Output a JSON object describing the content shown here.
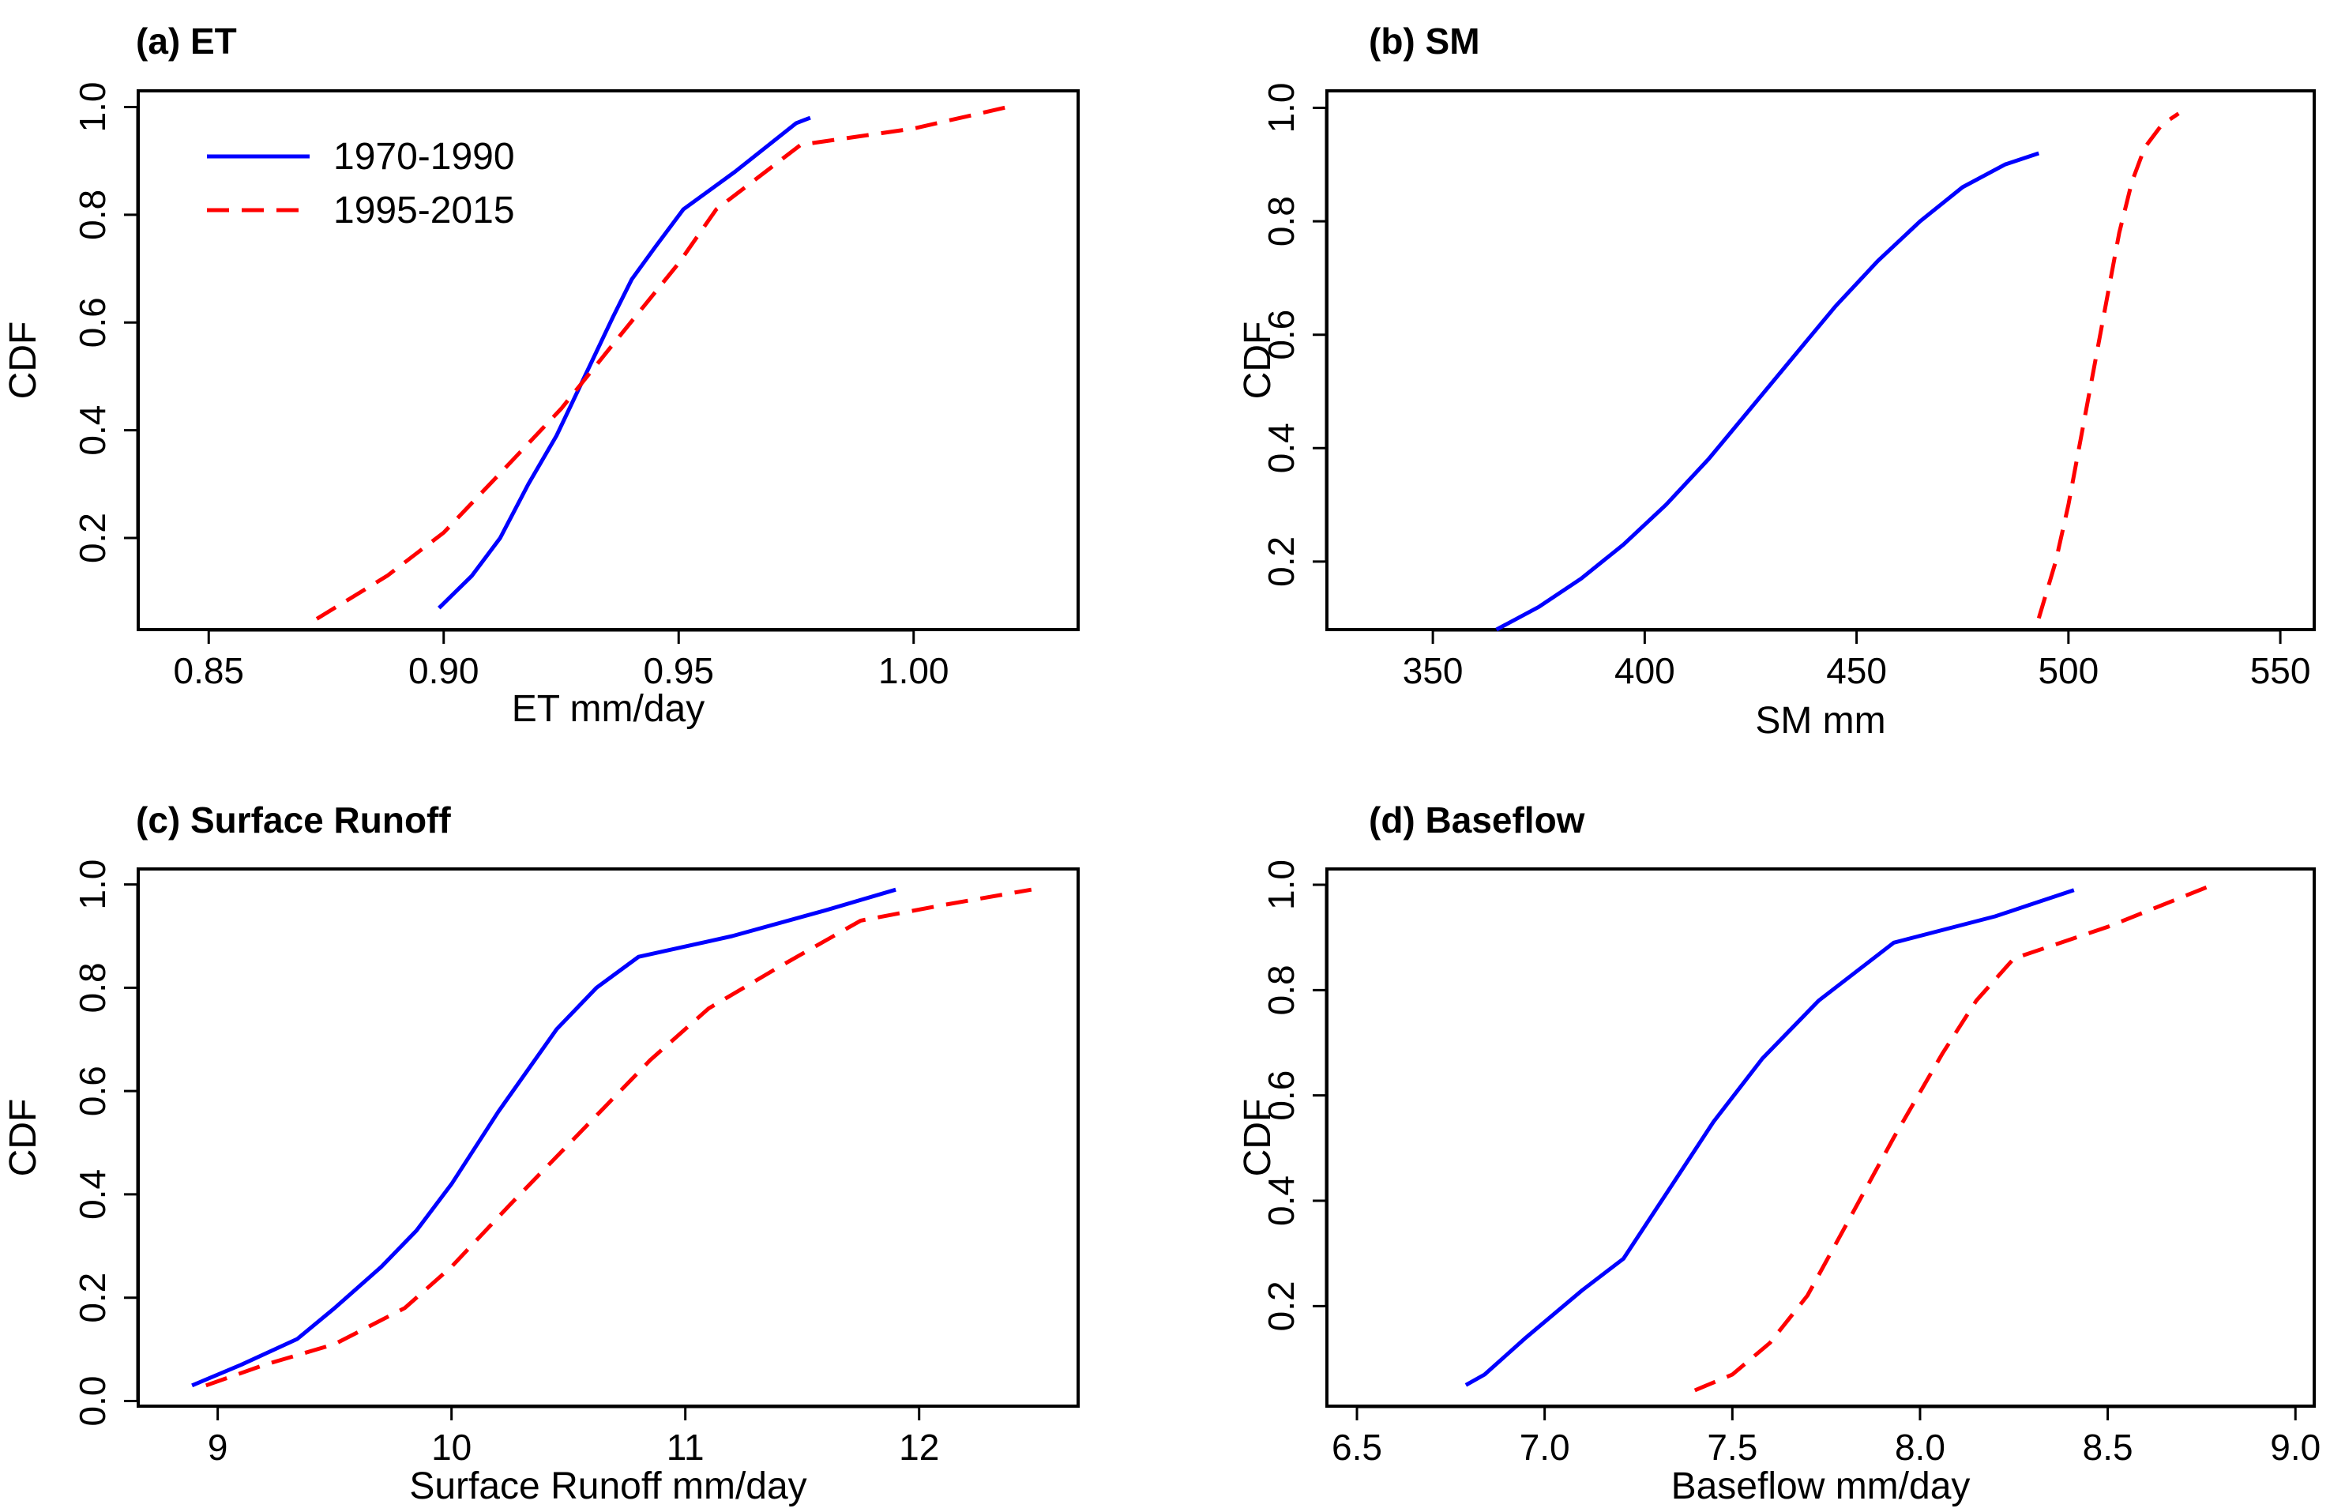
{
  "legend": [
    {
      "name": "1970-1990",
      "color": "#0000ff",
      "dash": "solid"
    },
    {
      "name": "1995-2015",
      "color": "#ff0000",
      "dash": "dashed"
    }
  ],
  "chart_data": [
    {
      "type": "line",
      "title": "(a) ET",
      "xlabel": "ET mm/day",
      "ylabel": "CDF",
      "xlim": [
        0.835,
        1.035
      ],
      "ylim": [
        0.03,
        1.03
      ],
      "xticks": [
        0.85,
        0.9,
        0.95,
        1.0
      ],
      "xtick_labels": [
        "0.85",
        "0.90",
        "0.95",
        "1.00"
      ],
      "yticks": [
        0.2,
        0.4,
        0.6,
        0.8,
        1.0
      ],
      "ytick_labels": [
        "0.2",
        "0.4",
        "0.6",
        "0.8",
        "1.0"
      ],
      "legend_position": "top-left",
      "series": [
        {
          "name": "1970-1990",
          "x": [
            0.899,
            0.906,
            0.912,
            0.918,
            0.924,
            0.93,
            0.936,
            0.94,
            0.945,
            0.951,
            0.962,
            0.975,
            0.978
          ],
          "y": [
            0.07,
            0.13,
            0.2,
            0.3,
            0.39,
            0.5,
            0.61,
            0.68,
            0.74,
            0.81,
            0.88,
            0.97,
            0.98
          ]
        },
        {
          "name": "1995-2015",
          "x": [
            0.873,
            0.888,
            0.9,
            0.912,
            0.925,
            0.937,
            0.95,
            0.958,
            0.976,
            1.0,
            1.02
          ],
          "y": [
            0.05,
            0.13,
            0.21,
            0.32,
            0.44,
            0.57,
            0.71,
            0.81,
            0.93,
            0.96,
            1.0
          ]
        }
      ]
    },
    {
      "type": "line",
      "title": "(b) SM",
      "xlabel": "SM mm",
      "ylabel": "CDF",
      "xlim": [
        325,
        558
      ],
      "ylim": [
        0.08,
        1.03
      ],
      "xticks": [
        350,
        400,
        450,
        500,
        550
      ],
      "xtick_labels": [
        "350",
        "400",
        "450",
        "500",
        "550"
      ],
      "yticks": [
        0.2,
        0.4,
        0.6,
        0.8,
        1.0
      ],
      "ytick_labels": [
        "0.2",
        "0.4",
        "0.6",
        "0.8",
        "1.0"
      ],
      "series": [
        {
          "name": "1970-1990",
          "x": [
            365,
            375,
            385,
            395,
            405,
            415,
            425,
            435,
            445,
            455,
            465,
            475,
            485,
            493
          ],
          "y": [
            0.08,
            0.12,
            0.17,
            0.23,
            0.3,
            0.38,
            0.47,
            0.56,
            0.65,
            0.73,
            0.8,
            0.86,
            0.9,
            0.92
          ]
        },
        {
          "name": "1995-2015",
          "x": [
            493,
            497,
            500,
            503,
            506,
            509,
            512,
            515,
            518,
            522,
            526
          ],
          "y": [
            0.1,
            0.2,
            0.3,
            0.42,
            0.54,
            0.66,
            0.78,
            0.87,
            0.93,
            0.97,
            0.99
          ]
        }
      ]
    },
    {
      "type": "line",
      "title": "(c) Surface Runoff",
      "xlabel": "Surface Runoff mm/day",
      "ylabel": "CDF",
      "xlim": [
        8.66,
        12.68
      ],
      "ylim": [
        -0.01,
        1.03
      ],
      "xticks": [
        9,
        10,
        11,
        12
      ],
      "xtick_labels": [
        "9",
        "10",
        "11",
        "12"
      ],
      "yticks": [
        0.0,
        0.2,
        0.4,
        0.6,
        0.8,
        1.0
      ],
      "ytick_labels": [
        "0.0",
        "0.2",
        "0.4",
        "0.6",
        "0.8",
        "1.0"
      ],
      "series": [
        {
          "name": "1970-1990",
          "x": [
            8.89,
            9.1,
            9.34,
            9.5,
            9.7,
            9.85,
            10.0,
            10.2,
            10.45,
            10.62,
            10.8,
            11.2,
            11.6,
            11.9
          ],
          "y": [
            0.03,
            0.07,
            0.12,
            0.18,
            0.26,
            0.33,
            0.42,
            0.56,
            0.72,
            0.8,
            0.86,
            0.9,
            0.95,
            0.99
          ]
        },
        {
          "name": "1995-2015",
          "x": [
            8.95,
            9.2,
            9.5,
            9.8,
            10.0,
            10.25,
            10.55,
            10.85,
            11.1,
            11.4,
            11.75,
            12.1,
            12.48
          ],
          "y": [
            0.03,
            0.07,
            0.11,
            0.18,
            0.26,
            0.38,
            0.52,
            0.66,
            0.76,
            0.84,
            0.93,
            0.96,
            0.99
          ]
        }
      ]
    },
    {
      "type": "line",
      "title": "(d) Baseflow",
      "xlabel": "Baseflow mm/day",
      "ylabel": "CDF",
      "xlim": [
        6.42,
        9.05
      ],
      "ylim": [
        0.01,
        1.03
      ],
      "xticks": [
        6.5,
        7.0,
        7.5,
        8.0,
        8.5,
        9.0
      ],
      "xtick_labels": [
        "6.5",
        "7.0",
        "7.5",
        "8.0",
        "8.5",
        "9.0"
      ],
      "yticks": [
        0.2,
        0.4,
        0.6,
        0.8,
        1.0
      ],
      "ytick_labels": [
        "0.2",
        "0.4",
        "0.6",
        "0.8",
        "1.0"
      ],
      "series": [
        {
          "name": "1970-1990",
          "x": [
            6.79,
            6.84,
            6.95,
            7.1,
            7.21,
            7.33,
            7.45,
            7.58,
            7.73,
            7.93,
            8.2,
            8.41
          ],
          "y": [
            0.05,
            0.07,
            0.14,
            0.23,
            0.29,
            0.42,
            0.55,
            0.67,
            0.78,
            0.89,
            0.94,
            0.99
          ]
        },
        {
          "name": "1995-2015",
          "x": [
            7.4,
            7.5,
            7.6,
            7.7,
            7.8,
            7.93,
            8.06,
            8.15,
            8.25,
            8.5,
            8.78
          ],
          "y": [
            0.04,
            0.07,
            0.13,
            0.22,
            0.35,
            0.52,
            0.68,
            0.78,
            0.86,
            0.92,
            1.0
          ]
        }
      ]
    }
  ]
}
